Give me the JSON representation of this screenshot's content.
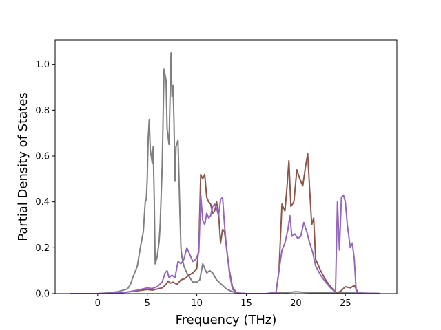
{
  "chart_data": {
    "type": "line",
    "xlabel": "Frequency (THz)",
    "ylabel": "Partial Density of States",
    "xlim": [
      -4.3,
      30.2
    ],
    "ylim": [
      0.0,
      1.107
    ],
    "xticks": [
      0,
      5,
      10,
      15,
      20,
      25
    ],
    "xtick_labels": [
      "0",
      "5",
      "10",
      "15",
      "20",
      "25"
    ],
    "yticks": [
      0.0,
      0.2,
      0.4,
      0.6,
      0.8,
      1.0
    ],
    "ytick_labels": [
      "0.0",
      "0.2",
      "0.4",
      "0.6",
      "0.8",
      "1.0"
    ],
    "grid": false,
    "legend": "none",
    "series": [
      {
        "color": "#7f7f7f",
        "x": [
          -2.8,
          0,
          1,
          2,
          3,
          3.3,
          3.5,
          4,
          4.3,
          4.6,
          4.8,
          4.9,
          5,
          5.1,
          5.2,
          5.3,
          5.5,
          5.6,
          5.7,
          5.8,
          6,
          6.2,
          6.3,
          6.5,
          6.7,
          6.9,
          7,
          7.2,
          7.4,
          7.5,
          7.6,
          7.7,
          7.8,
          7.9,
          8.1,
          8.3,
          8.4,
          8.5,
          8.7,
          9,
          9.3,
          9.6,
          10,
          10.3,
          10.6,
          10.8,
          11,
          11.3,
          11.6,
          12,
          12.5,
          13,
          13.5,
          14,
          15,
          16,
          17,
          18,
          18.5,
          19,
          20,
          21,
          22,
          23,
          23.8,
          24.3,
          25,
          25.8,
          26.5,
          28.5
        ],
        "y": [
          0,
          0,
          0.003,
          0.008,
          0.02,
          0.04,
          0.065,
          0.12,
          0.2,
          0.27,
          0.4,
          0.41,
          0.5,
          0.68,
          0.76,
          0.63,
          0.57,
          0.64,
          0.42,
          0.13,
          0.16,
          0.23,
          0.3,
          0.55,
          0.98,
          0.93,
          0.72,
          0.65,
          1.05,
          0.86,
          0.91,
          0.75,
          0.49,
          0.64,
          0.67,
          0.35,
          0.2,
          0.16,
          0.12,
          0.09,
          0.07,
          0.05,
          0.05,
          0.06,
          0.13,
          0.11,
          0.09,
          0.1,
          0.09,
          0.06,
          0.04,
          0.02,
          0.01,
          0.003,
          0,
          0,
          0,
          0.002,
          0.005,
          0.004,
          0.008,
          0.005,
          0.004,
          0.003,
          0.003,
          0.003,
          0.004,
          0.003,
          0.002,
          0.001
        ]
      },
      {
        "color": "#8c564b",
        "x": [
          -2.8,
          0,
          2,
          3,
          4,
          5,
          5.5,
          6,
          6.5,
          6.9,
          7.1,
          7.3,
          7.6,
          8,
          8.4,
          8.8,
          9.2,
          9.6,
          10,
          10.2,
          10.4,
          10.6,
          10.8,
          11,
          11.2,
          11.4,
          11.6,
          11.8,
          12,
          12.2,
          12.4,
          12.6,
          12.8,
          13,
          13.3,
          13.6,
          14,
          15,
          16,
          17,
          18,
          18.3,
          18.6,
          18.9,
          19.1,
          19.3,
          19.5,
          19.8,
          20.1,
          20.4,
          20.7,
          21,
          21.2,
          21.4,
          21.6,
          21.8,
          22,
          22.5,
          23,
          23.5,
          24,
          24.2,
          24.5,
          25,
          25.5,
          25.9,
          26.3,
          28.5
        ],
        "y": [
          0,
          0,
          0.003,
          0.007,
          0.012,
          0.018,
          0.015,
          0.02,
          0.025,
          0.04,
          0.055,
          0.045,
          0.05,
          0.04,
          0.06,
          0.065,
          0.08,
          0.09,
          0.11,
          0.2,
          0.52,
          0.5,
          0.52,
          0.42,
          0.4,
          0.39,
          0.35,
          0.36,
          0.4,
          0.35,
          0.22,
          0.28,
          0.27,
          0.2,
          0.1,
          0.03,
          0.003,
          0,
          0,
          0,
          0.005,
          0.1,
          0.39,
          0.36,
          0.46,
          0.58,
          0.38,
          0.4,
          0.54,
          0.5,
          0.47,
          0.56,
          0.61,
          0.45,
          0.3,
          0.33,
          0.15,
          0.1,
          0.06,
          0.03,
          0.007,
          0.004,
          0.01,
          0.03,
          0.025,
          0.035,
          0.002,
          0
        ]
      },
      {
        "color": "#9467bd",
        "x": [
          -2.8,
          0,
          2,
          3,
          4,
          5,
          5.5,
          6,
          6.5,
          6.8,
          7,
          7.2,
          7.5,
          7.8,
          8.1,
          8.4,
          8.7,
          9,
          9.3,
          9.6,
          9.9,
          10.2,
          10.4,
          10.6,
          10.8,
          11,
          11.2,
          11.4,
          11.6,
          11.8,
          12,
          12.2,
          12.4,
          12.6,
          12.8,
          13,
          13.3,
          13.6,
          14,
          15,
          16,
          17,
          18,
          18.3,
          18.6,
          18.9,
          19.2,
          19.4,
          19.6,
          19.9,
          20.2,
          20.5,
          20.8,
          21.1,
          21.4,
          21.7,
          22,
          22.5,
          23,
          23.5,
          24,
          24.2,
          24.4,
          24.6,
          24.8,
          25,
          25.2,
          25.5,
          25.7,
          25.9,
          26.1,
          28.5
        ],
        "y": [
          0,
          0,
          0.003,
          0.007,
          0.015,
          0.025,
          0.022,
          0.03,
          0.05,
          0.09,
          0.1,
          0.07,
          0.08,
          0.07,
          0.14,
          0.13,
          0.15,
          0.2,
          0.17,
          0.14,
          0.15,
          0.18,
          0.43,
          0.32,
          0.3,
          0.35,
          0.33,
          0.34,
          0.38,
          0.39,
          0.37,
          0.34,
          0.41,
          0.42,
          0.3,
          0.2,
          0.09,
          0.02,
          0.003,
          0,
          0,
          0,
          0.005,
          0.1,
          0.19,
          0.22,
          0.28,
          0.34,
          0.25,
          0.26,
          0.24,
          0.25,
          0.31,
          0.27,
          0.22,
          0.18,
          0.12,
          0.08,
          0.05,
          0.025,
          0.005,
          0.4,
          0.19,
          0.42,
          0.43,
          0.4,
          0.3,
          0.2,
          0.22,
          0.15,
          0.003,
          0
        ]
      }
    ]
  }
}
